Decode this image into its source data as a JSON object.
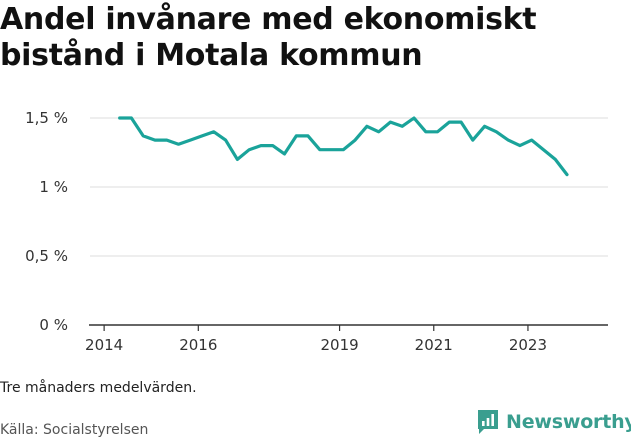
{
  "title": "Andel invånare med ekonomiskt bistånd i Motala kommun",
  "note": "Tre månaders medelvärden.",
  "source": "Källa: Socialstyrelsen",
  "brand": {
    "name": "Newsworthy",
    "logo_icon": "newsworthy-chart-icon",
    "color": "#3a9e8f"
  },
  "colors": {
    "line": "#1aa39a",
    "grid": "#dddddd",
    "axis": "#333333"
  },
  "chart_data": {
    "type": "line",
    "title": "Andel invånare med ekonomiskt bistånd i Motala kommun",
    "xlabel": "",
    "ylabel": "",
    "xlim": [
      2013.7,
      2024.7
    ],
    "ylim": [
      0,
      1.5
    ],
    "yticks": [
      {
        "value": 0,
        "label": "0 %"
      },
      {
        "value": 0.5,
        "label": "0,5 %"
      },
      {
        "value": 1,
        "label": "1 %"
      },
      {
        "value": 1.5,
        "label": "1,5 %"
      }
    ],
    "xticks": [
      {
        "value": 2014,
        "label": "2014"
      },
      {
        "value": 2016,
        "label": "2016"
      },
      {
        "value": 2019,
        "label": "2019"
      },
      {
        "value": 2021,
        "label": "2021"
      },
      {
        "value": 2023,
        "label": "2023"
      }
    ],
    "grid": true,
    "legend": "none",
    "series": [
      {
        "x": [
          2014.33,
          2014.58,
          2014.83,
          2015.08,
          2015.33,
          2015.58,
          2015.83,
          2016.08,
          2016.33,
          2016.58,
          2016.83,
          2017.08,
          2017.33,
          2017.58,
          2017.83,
          2018.08,
          2018.33,
          2018.58,
          2018.83,
          2019.08,
          2019.33,
          2019.58,
          2019.83,
          2020.08,
          2020.33,
          2020.58,
          2020.83,
          2021.08,
          2021.33,
          2021.58,
          2021.83,
          2022.08,
          2022.33,
          2022.58,
          2022.83,
          2023.08,
          2023.33,
          2023.58,
          2023.83
        ],
        "values": [
          1.5,
          1.5,
          1.37,
          1.34,
          1.34,
          1.31,
          1.34,
          1.37,
          1.4,
          1.34,
          1.2,
          1.27,
          1.3,
          1.3,
          1.24,
          1.37,
          1.37,
          1.27,
          1.27,
          1.27,
          1.34,
          1.44,
          1.4,
          1.47,
          1.44,
          1.5,
          1.4,
          1.4,
          1.47,
          1.47,
          1.34,
          1.44,
          1.4,
          1.34,
          1.3,
          1.34,
          1.27,
          1.2,
          1.09
        ]
      }
    ]
  }
}
